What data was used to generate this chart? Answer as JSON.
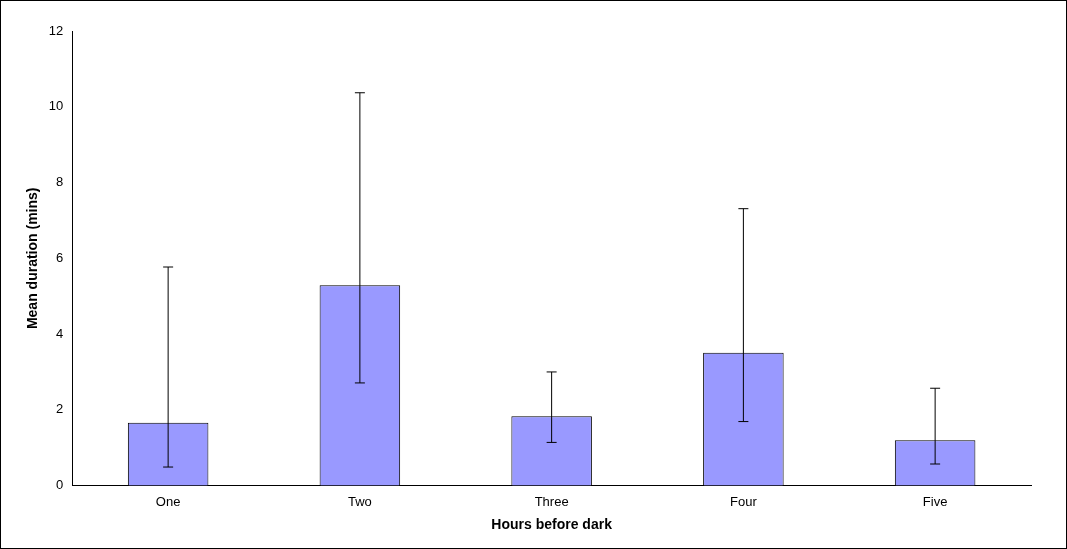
{
  "chart_data": {
    "type": "bar",
    "xlabel": "Hours before dark",
    "ylabel": "Mean duration (mins)",
    "categories": [
      "One",
      "Two",
      "Three",
      "Four",
      "Five"
    ],
    "values": [
      1.66,
      5.29,
      1.83,
      3.51,
      1.2
    ],
    "errors": [
      [
        0.49,
        5.77
      ],
      [
        2.71,
        10.37
      ],
      [
        1.14,
        3.0
      ],
      [
        1.69,
        7.31
      ],
      [
        0.57,
        2.57
      ]
    ],
    "color": "#9999ff",
    "ylim": [
      0,
      12
    ],
    "yticks": [
      0,
      2,
      4,
      6,
      8,
      10,
      12
    ],
    "grid": false,
    "legend": false
  }
}
